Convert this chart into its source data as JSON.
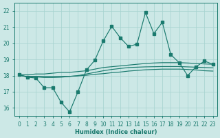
{
  "xlabel": "Humidex (Indice chaleur)",
  "background_color": "#cce8e6",
  "grid_color": "#a8d4d0",
  "line_color": "#1a7a6e",
  "xlim": [
    -0.5,
    23.5
  ],
  "ylim": [
    15.5,
    22.5
  ],
  "xticks": [
    0,
    1,
    2,
    3,
    4,
    5,
    6,
    7,
    8,
    9,
    10,
    11,
    12,
    13,
    14,
    15,
    16,
    17,
    18,
    19,
    20,
    21,
    22,
    23
  ],
  "yticks": [
    16,
    17,
    18,
    19,
    20,
    21,
    22
  ],
  "x": [
    0,
    1,
    2,
    3,
    4,
    5,
    6,
    7,
    8,
    9,
    10,
    11,
    12,
    13,
    14,
    15,
    16,
    17,
    18,
    19,
    20,
    21,
    22,
    23
  ],
  "line_jagged": [
    18.05,
    17.9,
    17.85,
    17.25,
    17.25,
    16.35,
    15.75,
    17.0,
    18.35,
    18.95,
    20.15,
    21.05,
    20.35,
    19.8,
    19.95,
    21.9,
    20.6,
    21.3,
    19.3,
    18.8,
    18.0,
    18.55,
    18.9,
    18.7
  ],
  "line_upper": [
    18.05,
    18.05,
    18.1,
    18.1,
    18.15,
    18.2,
    18.2,
    18.25,
    18.3,
    18.4,
    18.5,
    18.55,
    18.6,
    18.65,
    18.7,
    18.75,
    18.78,
    18.8,
    18.8,
    18.8,
    18.78,
    18.75,
    18.72,
    18.7
  ],
  "line_lower": [
    18.0,
    17.95,
    17.95,
    17.95,
    17.95,
    17.95,
    17.95,
    17.98,
    18.02,
    18.08,
    18.12,
    18.18,
    18.22,
    18.28,
    18.32,
    18.36,
    18.38,
    18.4,
    18.4,
    18.4,
    18.38,
    18.35,
    18.3,
    18.28
  ],
  "line_rising": [
    18.05,
    17.92,
    17.92,
    17.88,
    17.88,
    17.9,
    17.95,
    18.0,
    18.1,
    18.2,
    18.3,
    18.38,
    18.44,
    18.5,
    18.52,
    18.54,
    18.55,
    18.56,
    18.56,
    18.56,
    18.54,
    18.52,
    18.5,
    18.48
  ]
}
